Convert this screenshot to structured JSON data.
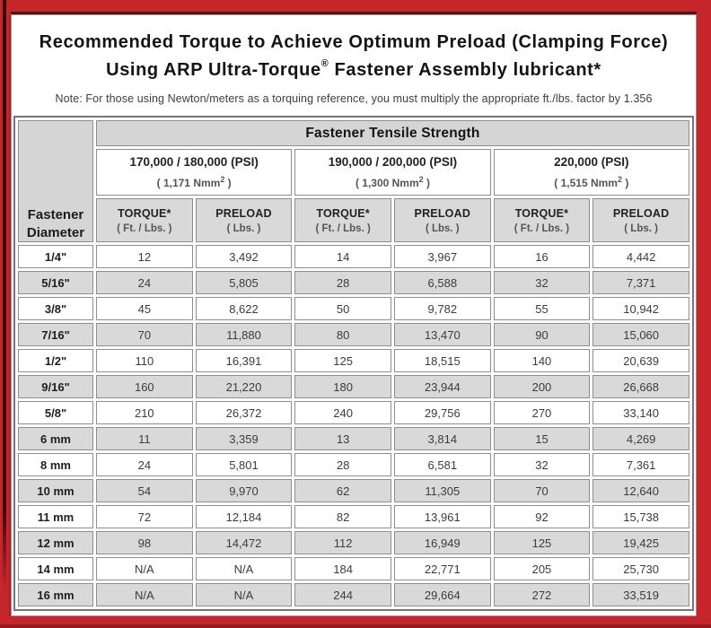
{
  "title": {
    "line1": "Recommended Torque to Achieve Optimum Preload (Clamping Force)",
    "line2_pre": "Using ARP Ultra-Torque",
    "line2_sup": "®",
    "line2_post": " Fastener Assembly lubricant*"
  },
  "note": "Note: For those using Newton/meters as a torquing reference, you must multiply the appropriate ft./lbs. factor by 1.356",
  "appearance": {
    "frame_red": "#c5262c",
    "edge_shadow_dark": "#300507",
    "header_gray": "#d5d5d5",
    "row_gray": "#d9d9d9",
    "cell_border_gray": "#8e8e8e",
    "text_dark": "#3c3c3c"
  },
  "table": {
    "corner_header": "Fastener Diameter",
    "main_header": "Fastener Tensile Strength",
    "strength_groups": [
      {
        "psi": "170,000 / 180,000 (PSI)",
        "nmm_pre": "( 1,171 Nmm",
        "nmm_sup": "2",
        "nmm_post": " )"
      },
      {
        "psi": "190,000 / 200,000 (PSI)",
        "nmm_pre": "( 1,300 Nmm",
        "nmm_sup": "2",
        "nmm_post": " )"
      },
      {
        "psi": "220,000 (PSI)",
        "nmm_pre": "( 1,515 Nmm",
        "nmm_sup": "2",
        "nmm_post": " )"
      }
    ],
    "sub_headers": {
      "torque_label": "TORQUE*",
      "torque_unit": "( Ft. / Lbs. )",
      "preload_label": "PRELOAD",
      "preload_unit": "( Lbs. )"
    },
    "rows": [
      {
        "diameter": "1/4\"",
        "values": [
          "12",
          "3,492",
          "14",
          "3,967",
          "16",
          "4,442"
        ]
      },
      {
        "diameter": "5/16\"",
        "values": [
          "24",
          "5,805",
          "28",
          "6,588",
          "32",
          "7,371"
        ]
      },
      {
        "diameter": "3/8\"",
        "values": [
          "45",
          "8,622",
          "50",
          "9,782",
          "55",
          "10,942"
        ]
      },
      {
        "diameter": "7/16\"",
        "values": [
          "70",
          "11,880",
          "80",
          "13,470",
          "90",
          "15,060"
        ]
      },
      {
        "diameter": "1/2\"",
        "values": [
          "110",
          "16,391",
          "125",
          "18,515",
          "140",
          "20,639"
        ]
      },
      {
        "diameter": "9/16\"",
        "values": [
          "160",
          "21,220",
          "180",
          "23,944",
          "200",
          "26,668"
        ]
      },
      {
        "diameter": "5/8\"",
        "values": [
          "210",
          "26,372",
          "240",
          "29,756",
          "270",
          "33,140"
        ]
      },
      {
        "diameter": "6 mm",
        "values": [
          "11",
          "3,359",
          "13",
          "3,814",
          "15",
          "4,269"
        ]
      },
      {
        "diameter": "8 mm",
        "values": [
          "24",
          "5,801",
          "28",
          "6,581",
          "32",
          "7,361"
        ]
      },
      {
        "diameter": "10 mm",
        "values": [
          "54",
          "9,970",
          "62",
          "11,305",
          "70",
          "12,640"
        ]
      },
      {
        "diameter": "11 mm",
        "values": [
          "72",
          "12,184",
          "82",
          "13,961",
          "92",
          "15,738"
        ]
      },
      {
        "diameter": "12 mm",
        "values": [
          "98",
          "14,472",
          "112",
          "16,949",
          "125",
          "19,425"
        ]
      },
      {
        "diameter": "14 mm",
        "values": [
          "N/A",
          "N/A",
          "184",
          "22,771",
          "205",
          "25,730"
        ]
      },
      {
        "diameter": "16 mm",
        "values": [
          "N/A",
          "N/A",
          "244",
          "29,664",
          "272",
          "33,519"
        ]
      }
    ]
  }
}
